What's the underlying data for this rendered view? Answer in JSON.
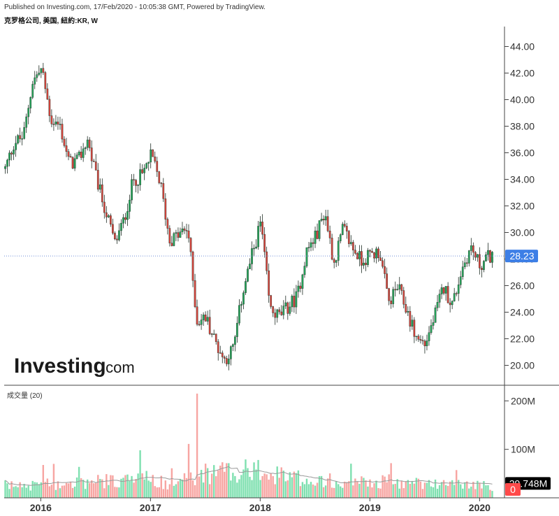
{
  "header": "Published on Investing.com, 17/Feb/2020 - 10:05:38 GMT, Powered by TradingView.",
  "title": "克罗格公司, 美国, 紐約:KR, W",
  "logo": {
    "main": "Investing",
    "suffix": ".com"
  },
  "colors": {
    "up": "#26a65b",
    "down": "#d9443c",
    "vol_up": "#7fe0b0",
    "vol_down": "#f7a5a2",
    "ma": "#9a9a9a",
    "last_badge": "#3d7fe6"
  },
  "chart_data": [
    {
      "type": "candlestick",
      "x_range": [
        "2015-09",
        "2020-02"
      ],
      "x_ticks": [
        "2016",
        "2017",
        "2018",
        "2019",
        "2020"
      ],
      "y_range": [
        18.5,
        45.5
      ],
      "y_ticks": [
        "20.00",
        "22.00",
        "24.00",
        "26.00",
        "28.00",
        "30.00",
        "32.00",
        "34.00",
        "36.00",
        "38.00",
        "40.00",
        "42.00",
        "44.00"
      ],
      "last_price": "28.23",
      "last_value": 28.23,
      "grid": false,
      "close_path": [
        [
          "2015-09",
          34.8
        ],
        [
          "2015-10",
          36.8
        ],
        [
          "2015-11",
          37.2
        ],
        [
          "2015-12",
          41.4
        ],
        [
          "2016-01",
          42.3
        ],
        [
          "2016-02",
          38.5
        ],
        [
          "2016-03",
          38.0
        ],
        [
          "2016-04",
          35.2
        ],
        [
          "2016-05",
          35.4
        ],
        [
          "2016-06",
          37.0
        ],
        [
          "2016-07",
          34.0
        ],
        [
          "2016-08",
          31.6
        ],
        [
          "2016-09",
          29.2
        ],
        [
          "2016-10",
          30.9
        ],
        [
          "2016-11",
          33.9
        ],
        [
          "2016-12",
          34.3
        ],
        [
          "2017-01",
          35.8
        ],
        [
          "2017-02",
          33.7
        ],
        [
          "2017-03",
          29.4
        ],
        [
          "2017-04",
          29.8
        ],
        [
          "2017-05",
          30.3
        ],
        [
          "2017-06",
          23.3
        ],
        [
          "2017-07",
          23.6
        ],
        [
          "2017-08",
          21.8
        ],
        [
          "2017-09",
          20.4
        ],
        [
          "2017-10",
          21.3
        ],
        [
          "2017-11",
          25.5
        ],
        [
          "2017-12",
          28.2
        ],
        [
          "2018-01",
          30.8
        ],
        [
          "2018-02",
          24.2
        ],
        [
          "2018-03",
          23.7
        ],
        [
          "2018-04",
          24.4
        ],
        [
          "2018-05",
          25.2
        ],
        [
          "2018-06",
          28.6
        ],
        [
          "2018-07",
          29.7
        ],
        [
          "2018-08",
          31.6
        ],
        [
          "2018-09",
          27.7
        ],
        [
          "2018-10",
          30.3
        ],
        [
          "2018-11",
          28.9
        ],
        [
          "2018-12",
          27.9
        ],
        [
          "2019-01",
          28.3
        ],
        [
          "2019-02",
          28.6
        ],
        [
          "2019-03",
          24.7
        ],
        [
          "2019-04",
          25.9
        ],
        [
          "2019-05",
          24.1
        ],
        [
          "2019-06",
          22.1
        ],
        [
          "2019-07",
          21.6
        ],
        [
          "2019-08",
          23.6
        ],
        [
          "2019-09",
          25.9
        ],
        [
          "2019-10",
          24.6
        ],
        [
          "2019-11",
          27.2
        ],
        [
          "2019-12",
          28.9
        ],
        [
          "2020-01",
          27.5
        ],
        [
          "2020-02",
          28.23
        ]
      ]
    },
    {
      "type": "bar",
      "title": "成交量 (20)",
      "y_range": [
        0,
        225
      ],
      "y_ticks": [
        "200M",
        "100M"
      ],
      "last_value_label": "29.748M",
      "last_value": 29.748,
      "zero_label": "0",
      "unit": "M",
      "ma_period": 20,
      "spike": [
        "2017-06",
        215
      ],
      "level_path": [
        [
          "2015-09",
          25
        ],
        [
          "2016-06",
          32
        ],
        [
          "2016-12",
          40
        ],
        [
          "2017-03",
          30
        ],
        [
          "2017-06",
          48
        ],
        [
          "2017-10",
          56
        ],
        [
          "2018-01",
          50
        ],
        [
          "2018-06",
          40
        ],
        [
          "2019-01",
          33
        ],
        [
          "2019-06",
          30
        ],
        [
          "2020-02",
          25
        ]
      ]
    }
  ]
}
